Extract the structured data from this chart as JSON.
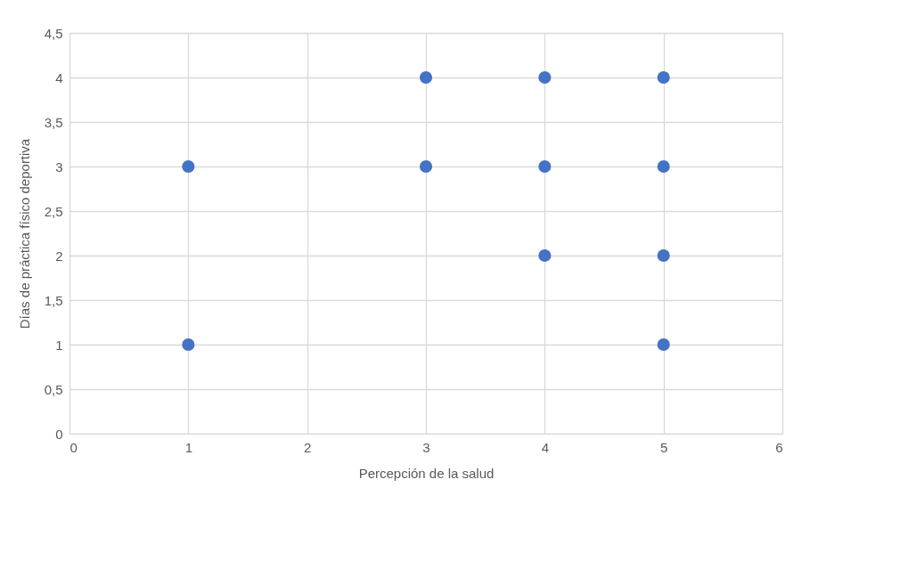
{
  "chart_data": {
    "type": "scatter",
    "xlabel": "Percepción de la salud",
    "ylabel": "Días de práctica físico deportiva",
    "x": [
      1,
      1,
      3,
      3,
      4,
      4,
      4,
      5,
      5,
      5,
      5
    ],
    "series": [
      {
        "color": "#4472c4",
        "values": [
          3,
          1,
          4,
          3,
          4,
          3,
          2,
          4,
          3,
          2,
          1
        ]
      }
    ],
    "xlim": [
      0,
      6
    ],
    "xticks": [
      0,
      1,
      2,
      3,
      4,
      5,
      6
    ],
    "ylim": [
      0,
      4.5
    ],
    "yticks": [
      0,
      {
        "value": 0.5,
        "label": "0,5"
      },
      1,
      {
        "value": 1.5,
        "label": "1,5"
      },
      2,
      {
        "value": 2.5,
        "label": "2,5"
      },
      3,
      {
        "value": 3.5,
        "label": "3,5"
      },
      4,
      {
        "value": 4.5,
        "label": "4,5"
      }
    ],
    "grid": true,
    "marker": "circle"
  }
}
